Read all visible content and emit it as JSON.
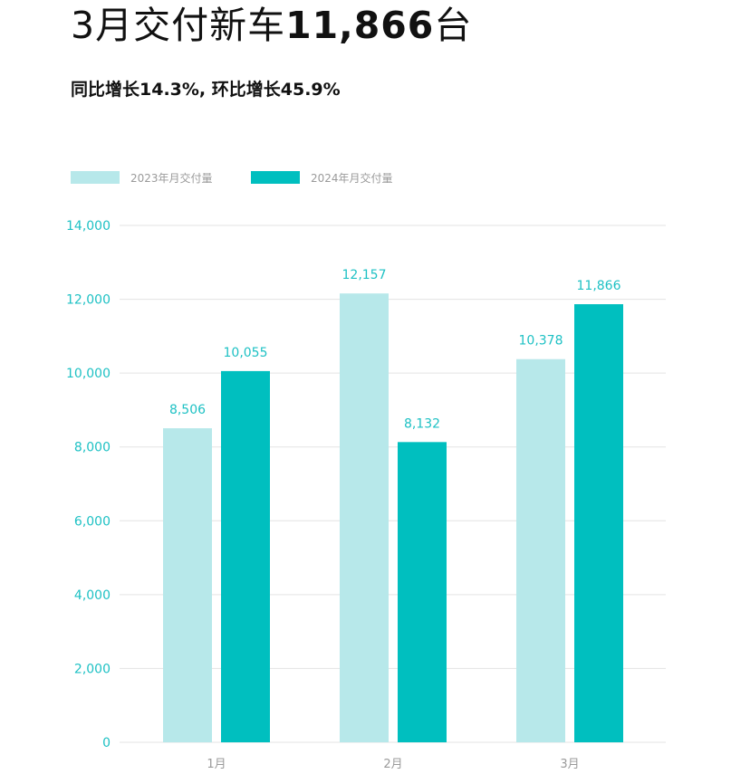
{
  "header": {
    "title_prefix": "3月交付新车",
    "title_number": "11,866",
    "title_suffix": "台",
    "subtitle": "同比增长14.3%, 环比增长45.9%"
  },
  "colors": {
    "series_2023": "#b7e8ea",
    "series_2024": "#00bfbf",
    "axis_text": "#1ec1c4",
    "grid": "#e3e3e3",
    "category_text": "#9a9a9a"
  },
  "chart_data": {
    "type": "bar",
    "categories": [
      "1月",
      "2月",
      "3月"
    ],
    "series": [
      {
        "name": "2023年月交付量",
        "values": [
          8506,
          12157,
          10378
        ],
        "labels": [
          "8,506",
          "12,157",
          "10,378"
        ]
      },
      {
        "name": "2024年月交付量",
        "values": [
          10055,
          8132,
          11866
        ],
        "labels": [
          "10,055",
          "8,132",
          "11,866"
        ]
      }
    ],
    "y_ticks": [
      0,
      2000,
      4000,
      6000,
      8000,
      10000,
      12000,
      14000
    ],
    "y_tick_labels": [
      "0",
      "2,000",
      "4,000",
      "6,000",
      "8,000",
      "10,000",
      "12,000",
      "14,000"
    ],
    "ylim": [
      0,
      14000
    ],
    "grid": true,
    "legend_position": "top-left"
  }
}
